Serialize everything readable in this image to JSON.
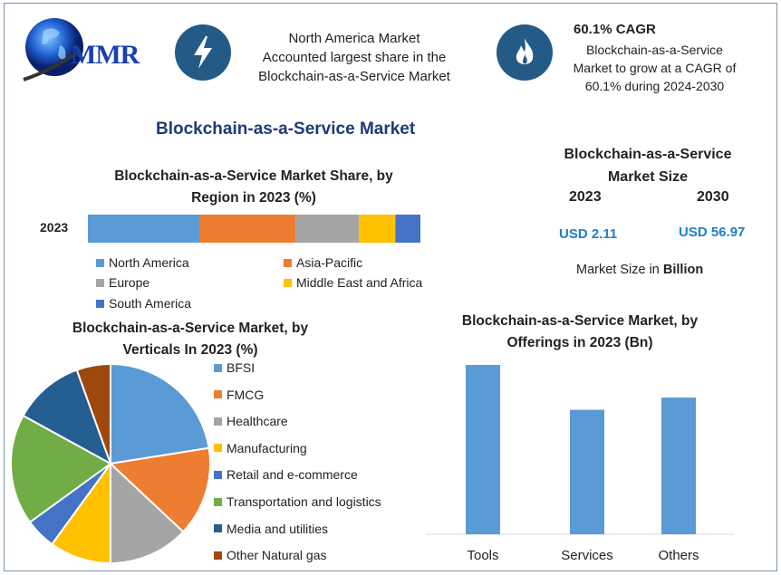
{
  "logo": {
    "text": "MMR"
  },
  "header": {
    "info1": {
      "icon": "lightning-bolt-icon",
      "lines": [
        "North America Market",
        "Accounted largest share in the",
        "Blockchain-as-a-Service Market"
      ]
    },
    "info2": {
      "icon": "flame-icon",
      "title": "60.1% CAGR",
      "lines": [
        "Blockchain-as-a-Service",
        "Market to grow at a CAGR of",
        "60.1% during 2024-2030"
      ]
    }
  },
  "main_title": "Blockchain-as-a-Service Market",
  "market_size": {
    "title_lines": [
      "Blockchain-as-a-Service",
      "Market Size"
    ],
    "year1": "2023",
    "year2": "2030",
    "value1": "USD 2.11",
    "value2": "USD 56.97",
    "note_prefix": "Market Size in ",
    "note_bold": "Billion",
    "value_color": "#1e7fc8"
  },
  "chart_data": [
    {
      "type": "bar",
      "orientation": "horizontal-stacked",
      "title_lines": [
        "Blockchain-as-a-Service Market Share, by",
        "Region in 2023 (%)"
      ],
      "categories": [
        "2023"
      ],
      "series": [
        {
          "name": "North America",
          "values": [
            33.5
          ],
          "color": "#5b9bd5"
        },
        {
          "name": "Asia-Pacific",
          "values": [
            29
          ],
          "color": "#ed7d31"
        },
        {
          "name": "Europe",
          "values": [
            19
          ],
          "color": "#a5a5a5"
        },
        {
          "name": "Middle East and Africa",
          "values": [
            11
          ],
          "color": "#ffc000"
        },
        {
          "name": "South America",
          "values": [
            7.5
          ],
          "color": "#4472c4"
        }
      ],
      "legend": "bottom"
    },
    {
      "type": "pie",
      "title_lines": [
        "Blockchain-as-a-Service Market, by",
        "Verticals In 2023 (%)"
      ],
      "slices": [
        {
          "name": "BFSI",
          "value": 22.5,
          "color": "#5b9bd5"
        },
        {
          "name": "FMCG",
          "value": 14.5,
          "color": "#ed7d31"
        },
        {
          "name": "Healthcare",
          "value": 13,
          "color": "#a5a5a5"
        },
        {
          "name": "Manufacturing",
          "value": 10,
          "color": "#ffc000"
        },
        {
          "name": "Retail and e-commerce",
          "value": 5,
          "color": "#4472c4"
        },
        {
          "name": "Transportation and logistics",
          "value": 18,
          "color": "#70ad47"
        },
        {
          "name": "Media and utilities",
          "value": 11.5,
          "color": "#255e91"
        },
        {
          "name": "Other Natural gas",
          "value": 5.5,
          "color": "#9e480e"
        }
      ],
      "legend": "right"
    },
    {
      "type": "bar",
      "title_lines": [
        "Blockchain-as-a-Service Market, by",
        "Offerings in 2023 (Bn)"
      ],
      "categories": [
        "Tools",
        "Services",
        "Others"
      ],
      "values": [
        0.83,
        0.61,
        0.67
      ],
      "color": "#5b9bd5",
      "grid": false
    }
  ]
}
